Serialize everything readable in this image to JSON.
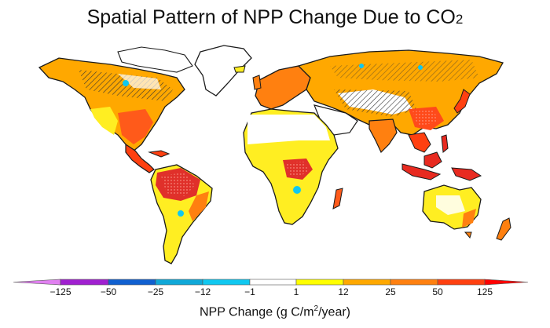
{
  "title": {
    "main": "Spatial Pattern of NPP Change Due to CO",
    "subscript": "2"
  },
  "colorbar": {
    "ticks": [
      "−125",
      "−50",
      "−25",
      "−12",
      "−1",
      "1",
      "12",
      "25",
      "50",
      "125"
    ],
    "colors": [
      "#e080f0",
      "#a020d0",
      "#1060d0",
      "#10a8d8",
      "#10c8f0",
      "#ffffff",
      "#ffff00",
      "#ffa800",
      "#ff8010",
      "#ff4010",
      "#ff0000"
    ],
    "title_prefix": "NPP Change (g C/m",
    "title_sup": "2",
    "title_suffix": "/year)"
  },
  "palette": {
    "border": "#1a1a1a",
    "hatch": "#333333"
  }
}
